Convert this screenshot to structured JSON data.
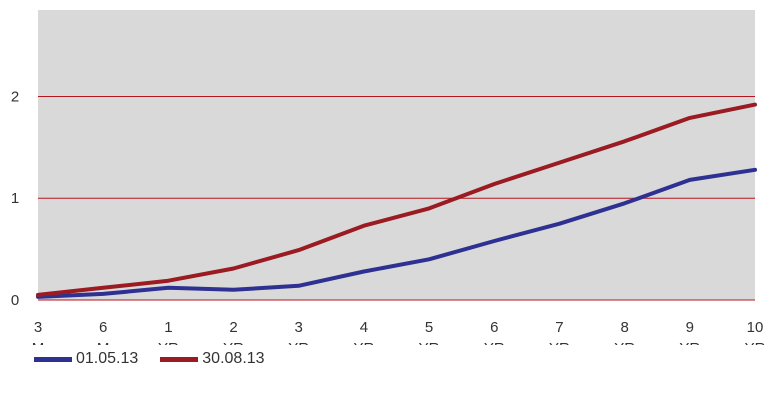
{
  "chart_data": {
    "type": "line",
    "categories": [
      [
        "3",
        "M"
      ],
      [
        "6",
        "M"
      ],
      [
        "1",
        "YR"
      ],
      [
        "2",
        "YR"
      ],
      [
        "3",
        "YR"
      ],
      [
        "4",
        "YR"
      ],
      [
        "5",
        "YR"
      ],
      [
        "6",
        "YR"
      ],
      [
        "7",
        "YR"
      ],
      [
        "8",
        "YR"
      ],
      [
        "9",
        "YR"
      ],
      [
        "10",
        "YR"
      ]
    ],
    "series": [
      {
        "name": "01.05.13",
        "color": "#2e3192",
        "values": [
          0.03,
          0.06,
          0.12,
          0.1,
          0.14,
          0.28,
          0.4,
          0.58,
          0.75,
          0.95,
          1.18,
          1.28
        ]
      },
      {
        "name": "30.08.13",
        "color": "#9b1b22",
        "values": [
          0.05,
          0.12,
          0.19,
          0.31,
          0.49,
          0.73,
          0.9,
          1.14,
          1.35,
          1.56,
          1.79,
          1.92
        ]
      }
    ],
    "yticks": [
      0,
      1,
      2
    ],
    "ylim": [
      0,
      2.85
    ],
    "grid": true,
    "colors": {
      "plot_background": "#d9d9d9",
      "gridline": "#b5161d"
    },
    "legend": "bottom-left"
  }
}
